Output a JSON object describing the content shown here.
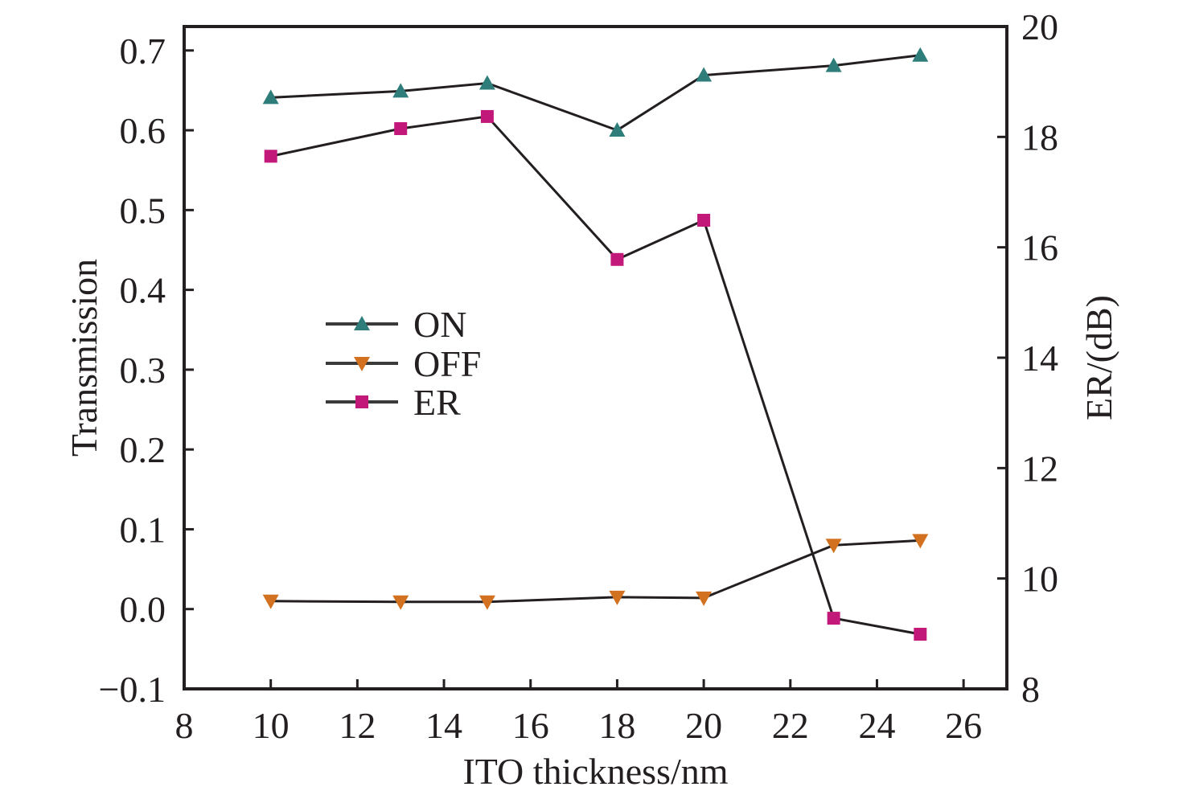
{
  "chart_data": {
    "type": "line",
    "title": "",
    "xlabel": "ITO thickness/nm",
    "ylabel": "Transmission",
    "y2label": "ER/(dB)",
    "xlim": [
      8,
      27
    ],
    "ylim": [
      -0.1,
      0.73
    ],
    "y2lim": [
      8,
      20
    ],
    "xticks": [
      8,
      10,
      12,
      14,
      16,
      18,
      20,
      22,
      24,
      26
    ],
    "xtick_labels": [
      "8",
      "10",
      "12",
      "14",
      "16",
      "18",
      "20",
      "22",
      "24",
      "26"
    ],
    "yticks": [
      -0.1,
      0.0,
      0.1,
      0.2,
      0.3,
      0.4,
      0.5,
      0.6,
      0.7
    ],
    "ytick_labels": [
      "−0.1",
      "0.0",
      "0.1",
      "0.2",
      "0.3",
      "0.4",
      "0.5",
      "0.6",
      "0.7"
    ],
    "y2ticks": [
      8,
      10,
      12,
      14,
      16,
      18,
      20
    ],
    "y2tick_labels": [
      "8",
      "10",
      "12",
      "14",
      "16",
      "18",
      "20"
    ],
    "grid": false,
    "legend_position": "center-left",
    "x": [
      10,
      13,
      15,
      18,
      20,
      23,
      25
    ],
    "series": [
      {
        "name": "ON",
        "axis": "left",
        "marker": "triangle-up",
        "color": "#2e7d7a",
        "values": [
          0.641,
          0.649,
          0.659,
          0.6,
          0.669,
          0.681,
          0.694
        ]
      },
      {
        "name": "OFF",
        "axis": "left",
        "marker": "triangle-down",
        "color": "#d2711f",
        "values": [
          0.01,
          0.009,
          0.009,
          0.015,
          0.014,
          0.08,
          0.086
        ]
      },
      {
        "name": "ER",
        "axis": "right",
        "marker": "square",
        "color": "#c2187a",
        "values": [
          17.65,
          18.15,
          18.37,
          15.78,
          16.49,
          9.28,
          8.99
        ]
      }
    ]
  }
}
